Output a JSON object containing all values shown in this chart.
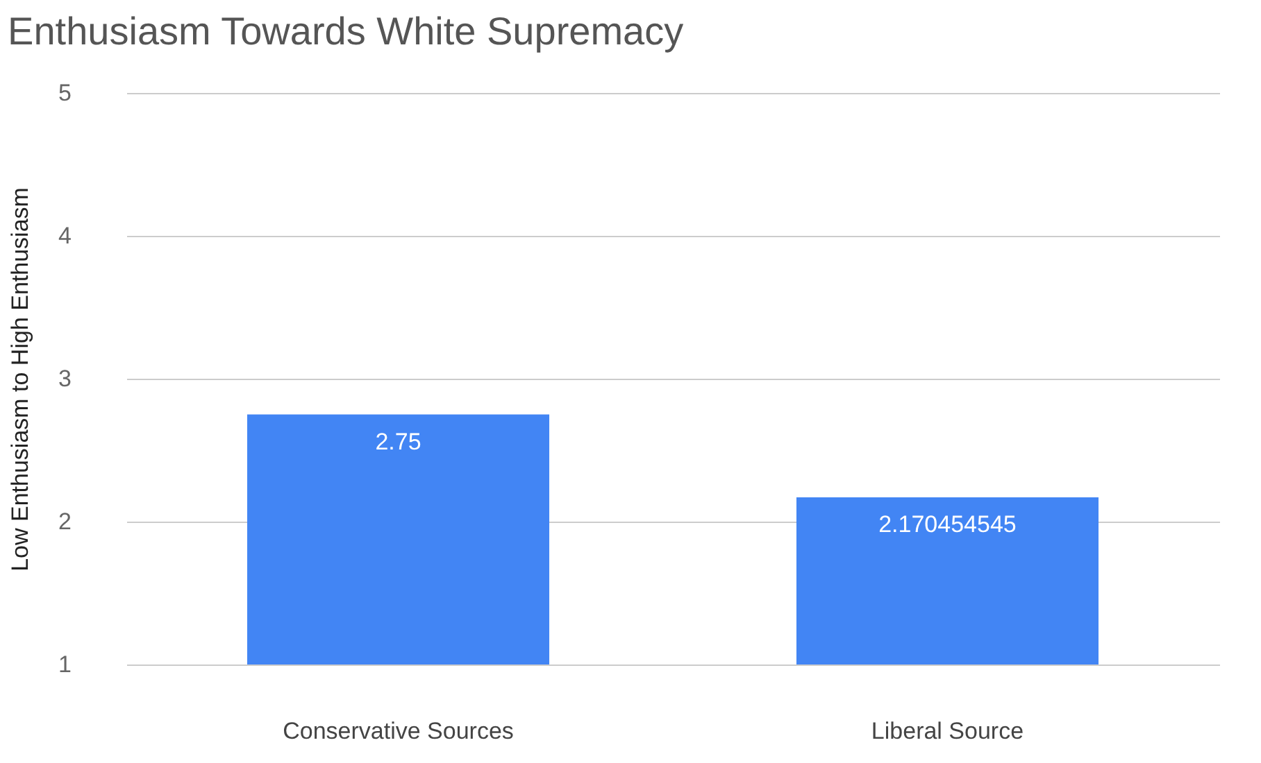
{
  "chart_data": {
    "type": "bar",
    "title": "Enthusiasm Towards White Supremacy",
    "ylabel": "Low Enthusiasm to High Enthusiasm",
    "categories": [
      "Conservative Sources",
      "Liberal Source"
    ],
    "values": [
      2.75,
      2.170454545
    ],
    "color": "#4285f4",
    "ylim": [
      1,
      5
    ],
    "yticks": [
      1,
      2,
      3,
      4,
      5
    ],
    "grid": "y",
    "data_labels": true
  }
}
